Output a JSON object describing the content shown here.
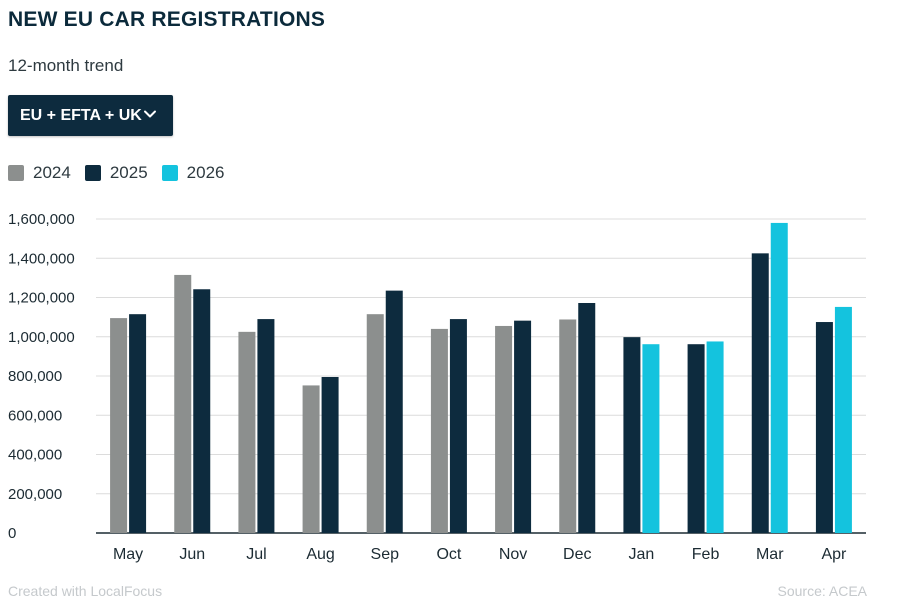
{
  "header": {
    "title": "NEW EU CAR REGISTRATIONS",
    "subtitle": "12-month trend"
  },
  "region_select": {
    "selected": "EU + EFTA + UK"
  },
  "footer": {
    "credit": "Created with LocalFocus",
    "source": "Source: ACEA"
  },
  "colors": {
    "2024": "#8c8f8e",
    "2025": "#0d2b3e",
    "2026": "#14c3de"
  },
  "chart_data": {
    "type": "bar",
    "title": "NEW EU CAR REGISTRATIONS",
    "subtitle": "12-month trend",
    "categories": [
      "May",
      "Jun",
      "Jul",
      "Aug",
      "Sep",
      "Oct",
      "Nov",
      "Dec",
      "Jan",
      "Feb",
      "Mar",
      "Apr"
    ],
    "series": [
      {
        "name": "2024",
        "values": [
          1095000,
          1315000,
          1025000,
          752000,
          1115000,
          1040000,
          1055000,
          1088000,
          null,
          null,
          null,
          null
        ]
      },
      {
        "name": "2025",
        "values": [
          1115000,
          1242000,
          1090000,
          795000,
          1235000,
          1090000,
          1082000,
          1172000,
          998000,
          962000,
          1425000,
          1075000
        ]
      },
      {
        "name": "2026",
        "values": [
          null,
          null,
          null,
          null,
          null,
          null,
          null,
          null,
          962000,
          976000,
          1580000,
          1152000
        ]
      }
    ],
    "y_ticks": [
      "1,600,000",
      "1,400,000",
      "1,200,000",
      "1,000,000",
      "800,000",
      "600,000",
      "400,000",
      "200,000",
      "0"
    ],
    "ylim": [
      0,
      1600000
    ],
    "grid": true,
    "legend": "top-left"
  }
}
